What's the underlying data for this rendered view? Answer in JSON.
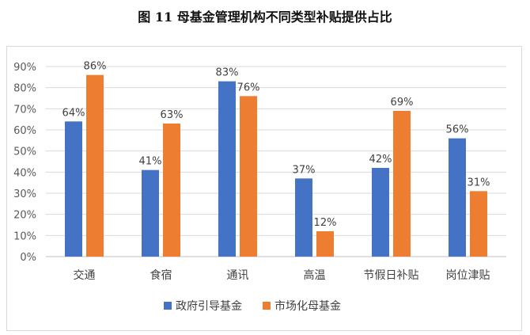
{
  "figure_title": "图 11  母基金管理机构不同类型补贴提供占比",
  "chart_data": {
    "type": "bar",
    "categories": [
      "交通",
      "食宿",
      "通讯",
      "高温",
      "节假日补贴",
      "岗位津贴"
    ],
    "series": [
      {
        "name": "政府引导基金",
        "color": "#4472C4",
        "values": [
          64,
          41,
          83,
          37,
          42,
          56
        ]
      },
      {
        "name": "市场化母基金",
        "color": "#ED7D31",
        "values": [
          86,
          63,
          76,
          12,
          69,
          31
        ]
      }
    ],
    "y_ticks": [
      "0%",
      "10%",
      "20%",
      "30%",
      "40%",
      "50%",
      "60%",
      "70%",
      "80%",
      "90%"
    ],
    "ylim": [
      0,
      90
    ],
    "value_suffix": "%",
    "grid": true,
    "legend": "bottom"
  }
}
